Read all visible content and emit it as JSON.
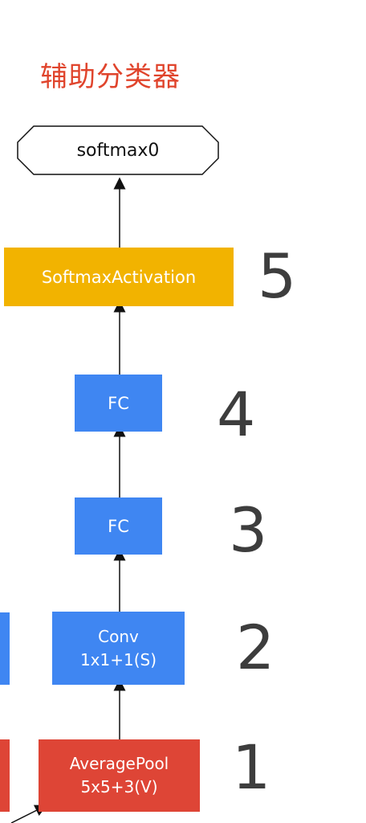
{
  "title": "辅助分类器",
  "nodes": {
    "output": "softmax0",
    "activation": "SoftmaxActivation",
    "fc_top": "FC",
    "fc_bottom": "FC",
    "conv": "Conv\n1x1+1(S)",
    "pool": "AveragePool\n5x5+3(V)"
  },
  "layer_numbers": [
    "5",
    "4",
    "3",
    "2",
    "1"
  ],
  "colors": {
    "title": "#e0442c",
    "blue": "#3f86f2",
    "orange": "#f2b300",
    "red": "#de4536",
    "number": "#3d3d3d"
  }
}
